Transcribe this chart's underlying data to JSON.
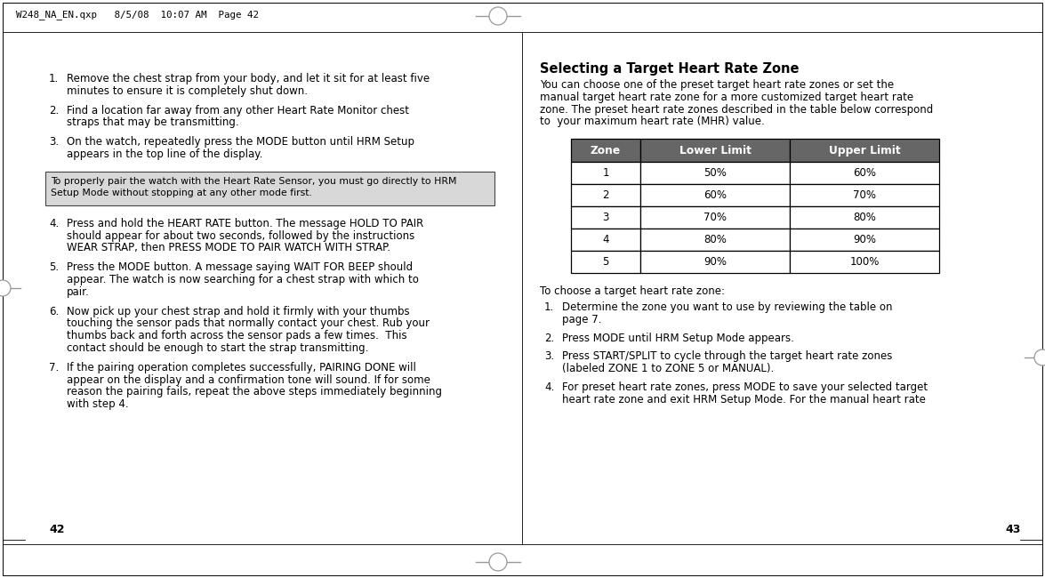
{
  "page_bg": "#ffffff",
  "header_text": "W248_NA_EN.qxp   8/5/08  10:07 AM  Page 42",
  "left_page_number": "42",
  "right_page_number": "43",
  "note_box_text_line1": "To properly pair the watch with the Heart Rate Sensor, you must go directly to HRM",
  "note_box_text_line2": "Setup Mode without stopping at any other mode first.",
  "right_title": "Selecting a Target Heart Rate Zone",
  "right_intro_lines": [
    "You can choose one of the preset target heart rate zones or set the",
    "manual target heart rate zone for a more customized target heart rate",
    "zone. The preset heart rate zones described in the table below correspond",
    "to  your maximum heart rate (MHR) value."
  ],
  "table_header": [
    "Zone",
    "Lower Limit",
    "Upper Limit"
  ],
  "table_rows": [
    [
      "1",
      "50%",
      "60%"
    ],
    [
      "2",
      "60%",
      "70%"
    ],
    [
      "3",
      "70%",
      "80%"
    ],
    [
      "4",
      "80%",
      "90%"
    ],
    [
      "5",
      "90%",
      "100%"
    ]
  ],
  "right_after_table": "To choose a target heart rate zone:",
  "left_items_1_3": [
    [
      "1.",
      "Remove the chest strap from your body, and let it sit for at least five",
      "minutes to ensure it is completely shut down."
    ],
    [
      "2.",
      "Find a location far away from any other Heart Rate Monitor chest",
      "straps that may be transmitting."
    ],
    [
      "3.",
      "On the watch, repeatedly press the MODE button until HRM Setup",
      "appears in the top line of the display."
    ]
  ],
  "left_items_4_7": [
    [
      "4.",
      "Press and hold the HEART RATE button. The message HOLD TO PAIR",
      "should appear for about two seconds, followed by the instructions",
      "WEAR STRAP, then PRESS MODE TO PAIR WATCH WITH STRAP."
    ],
    [
      "5.",
      "Press the MODE button. A message saying WAIT FOR BEEP should",
      "appear. The watch is now searching for a chest strap with which to",
      "pair."
    ],
    [
      "6.",
      "Now pick up your chest strap and hold it firmly with your thumbs",
      "touching the sensor pads that normally contact your chest. Rub your",
      "thumbs back and forth across the sensor pads a few times.  This",
      "contact should be enough to start the strap transmitting."
    ],
    [
      "7.",
      "If the pairing operation completes successfully, PAIRING DONE will",
      "appear on the display and a confirmation tone will sound. If for some",
      "reason the pairing fails, repeat the above steps immediately beginning",
      "with step 4."
    ]
  ],
  "right_list": [
    [
      "1.",
      "Determine the zone you want to use by reviewing the table on",
      "page 7."
    ],
    [
      "2.",
      "Press MODE until HRM Setup Mode appears."
    ],
    [
      "3.",
      "Press START/SPLIT to cycle through the target heart rate zones",
      "(labeled ZONE 1 to ZONE 5 or MANUAL)."
    ],
    [
      "4.",
      "For preset heart rate zones, press MODE to save your selected target",
      "heart rate zone and exit HRM Setup Mode. For the manual heart rate"
    ]
  ]
}
